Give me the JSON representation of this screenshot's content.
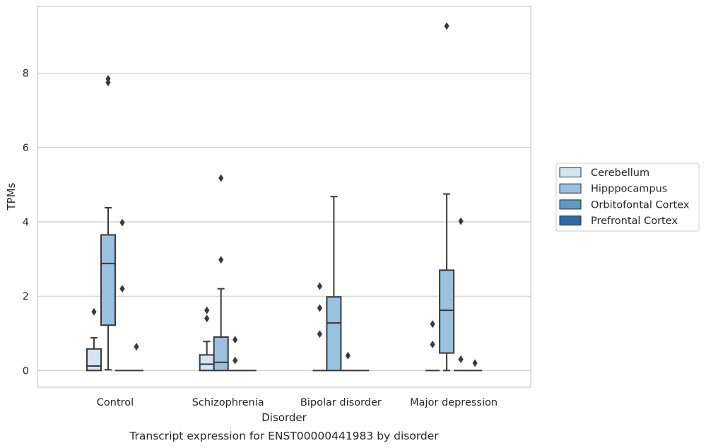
{
  "chart_data": {
    "type": "box",
    "title": "",
    "caption": "Transcript expression for ENST00000441983 by disorder",
    "xlabel": "Disorder",
    "ylabel": "TPMs",
    "ylim": [
      -0.45,
      9.8
    ],
    "y_ticks": [
      0,
      2,
      4,
      6,
      8
    ],
    "grid": "horizontal",
    "legend_position": "right",
    "categories": [
      "Control",
      "Schizophrenia",
      "Bipolar disorder",
      "Major depression"
    ],
    "series": [
      {
        "name": "Cerebellum",
        "color": "#d3e4f3",
        "boxes": [
          {
            "whislo": 0,
            "q1": 0,
            "med": 0.12,
            "q3": 0.58,
            "whishi": 0.88,
            "fliers": [
              1.58
            ]
          },
          {
            "whislo": 0,
            "q1": 0,
            "med": 0.17,
            "q3": 0.42,
            "whishi": 0.78,
            "fliers": [
              1.4,
              1.62
            ]
          },
          {
            "whislo": 0,
            "q1": 0,
            "med": 0,
            "q3": 0,
            "whishi": 0,
            "fliers": [
              0.98,
              1.68,
              2.27
            ]
          },
          {
            "whislo": 0,
            "q1": 0,
            "med": 0,
            "q3": 0,
            "whishi": 0,
            "fliers": [
              0.7,
              1.25
            ]
          }
        ]
      },
      {
        "name": "Hipppocampus",
        "color": "#9ac1dd",
        "boxes": [
          {
            "whislo": 0.02,
            "q1": 1.22,
            "med": 2.88,
            "q3": 3.65,
            "whishi": 4.38,
            "fliers": [
              7.75,
              7.85
            ]
          },
          {
            "whislo": 0,
            "q1": 0,
            "med": 0.22,
            "q3": 0.9,
            "whishi": 2.2,
            "fliers": [
              2.98,
              5.18
            ]
          },
          {
            "whislo": 0,
            "q1": 0,
            "med": 1.28,
            "q3": 1.98,
            "whishi": 4.68,
            "fliers": []
          },
          {
            "whislo": 0,
            "q1": 0.47,
            "med": 1.62,
            "q3": 2.7,
            "whishi": 4.75,
            "fliers": [
              9.27
            ]
          }
        ]
      },
      {
        "name": "Orbitofontal Cortex",
        "color": "#5b9bc8",
        "boxes": [
          {
            "whislo": 0,
            "q1": 0,
            "med": 0,
            "q3": 0,
            "whishi": 0,
            "fliers": [
              2.2,
              3.98
            ]
          },
          {
            "whislo": 0,
            "q1": 0,
            "med": 0,
            "q3": 0,
            "whishi": 0,
            "fliers": [
              0.27,
              0.83
            ]
          },
          {
            "whislo": 0,
            "q1": 0,
            "med": 0,
            "q3": 0,
            "whishi": 0,
            "fliers": [
              0.4
            ]
          },
          {
            "whislo": 0,
            "q1": 0,
            "med": 0,
            "q3": 0,
            "whishi": 0,
            "fliers": [
              0.3,
              4.02
            ]
          }
        ]
      },
      {
        "name": "Prefrontal Cortex",
        "color": "#2b6ca8",
        "boxes": [
          {
            "whislo": 0,
            "q1": 0,
            "med": 0,
            "q3": 0,
            "whishi": 0,
            "fliers": [
              0.64
            ]
          },
          {
            "whislo": 0,
            "q1": 0,
            "med": 0,
            "q3": 0,
            "whishi": 0,
            "fliers": []
          },
          {
            "whislo": 0,
            "q1": 0,
            "med": 0,
            "q3": 0,
            "whishi": 0,
            "fliers": []
          },
          {
            "whislo": 0,
            "q1": 0,
            "med": 0,
            "q3": 0,
            "whishi": 0,
            "fliers": [
              0.2
            ]
          }
        ]
      }
    ]
  }
}
